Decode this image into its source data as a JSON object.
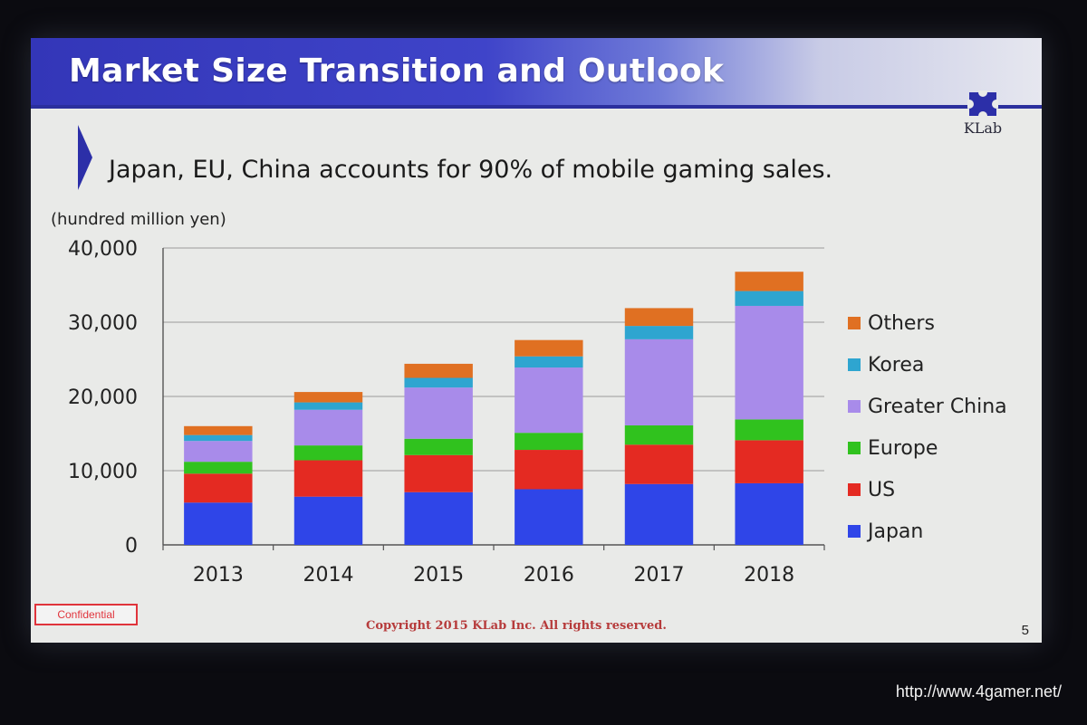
{
  "slide": {
    "title": "Market Size Transition and Outlook",
    "subtitle": "Japan, EU, China accounts for 90% of mobile gaming sales.",
    "logo_text": "KLab",
    "confidential_label": "Confidential",
    "copyright": "Copyright 2015 KLab Inc. All rights reserved.",
    "page_number": "5",
    "brand_color": "#2c2fa8"
  },
  "watermark": "http://www.4gamer.net/",
  "chart_data": {
    "type": "bar",
    "stacked": true,
    "title": "Market Size Transition and Outlook",
    "unit_label": "(hundred million yen)",
    "xlabel": "",
    "ylabel": "(hundred million yen)",
    "ylim": [
      0,
      40000
    ],
    "yticks": [
      0,
      10000,
      20000,
      30000,
      40000
    ],
    "ytick_labels": [
      "0",
      "10,000",
      "20,000",
      "30,000",
      "40,000"
    ],
    "grid": true,
    "legend_position": "right",
    "categories": [
      "2013",
      "2014",
      "2015",
      "2016",
      "2017",
      "2018"
    ],
    "series": [
      {
        "name": "Japan",
        "color": "#2f45e8",
        "values": [
          5700,
          6500,
          7100,
          7500,
          8200,
          8300
        ]
      },
      {
        "name": "US",
        "color": "#e42a22",
        "values": [
          3900,
          4900,
          5000,
          5300,
          5300,
          5800
        ]
      },
      {
        "name": "Europe",
        "color": "#30c21e",
        "values": [
          1600,
          2000,
          2200,
          2300,
          2600,
          2800
        ]
      },
      {
        "name": "Greater China",
        "color": "#a88bea",
        "values": [
          2800,
          4800,
          6900,
          8800,
          11600,
          15300
        ]
      },
      {
        "name": "Korea",
        "color": "#2ea5d0",
        "values": [
          800,
          1000,
          1300,
          1500,
          1800,
          2000
        ]
      },
      {
        "name": "Others",
        "color": "#e07022",
        "values": [
          1200,
          1400,
          1900,
          2200,
          2400,
          2600
        ]
      }
    ]
  }
}
